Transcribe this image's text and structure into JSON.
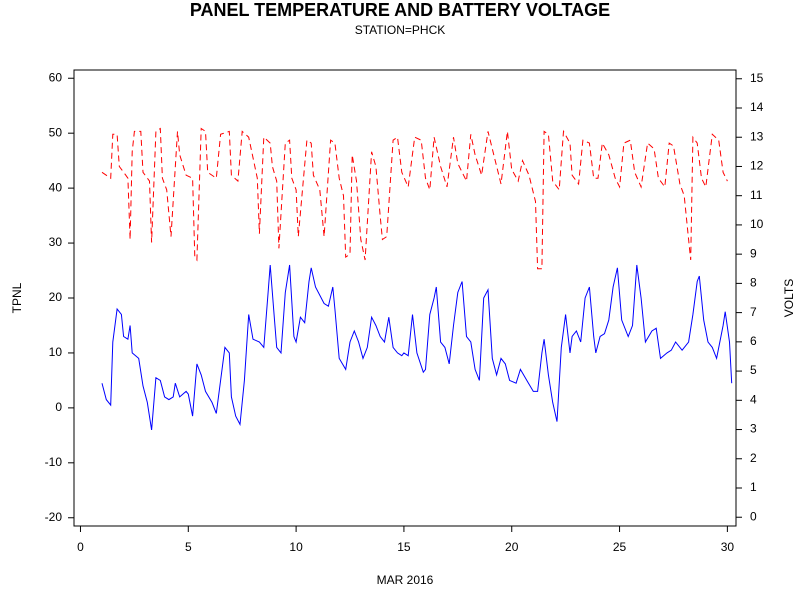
{
  "chart_data": {
    "type": "line",
    "title": "PANEL TEMPERATURE AND BATTERY VOLTAGE",
    "subtitle": "STATION=PHCK",
    "xlabel": "MAR 2016",
    "ylabel": "TPNL",
    "y2label": "VOLTS",
    "xlim": [
      -0.3,
      30.4
    ],
    "xticks": [
      0,
      5,
      10,
      15,
      20,
      25,
      30
    ],
    "ylim": [
      -21.5,
      61.5
    ],
    "yticks": [
      -20,
      -10,
      0,
      10,
      20,
      30,
      40,
      50,
      60
    ],
    "y2lim": [
      -0.3,
      15.3
    ],
    "y2ticks": [
      0,
      1,
      2,
      3,
      4,
      5,
      6,
      7,
      8,
      9,
      10,
      11,
      12,
      13,
      14,
      15
    ],
    "series": [
      {
        "color": "#0000ff",
        "style": "solid",
        "x": [
          1.0,
          1.2,
          1.4,
          1.5,
          1.7,
          1.9,
          2.0,
          2.2,
          2.3,
          2.4,
          2.7,
          2.9,
          3.1,
          3.3,
          3.5,
          3.7,
          3.9,
          4.1,
          4.3,
          4.4,
          4.6,
          4.9,
          5.0,
          5.2,
          5.4,
          5.6,
          5.8,
          6.1,
          6.3,
          6.5,
          6.7,
          6.9,
          7.0,
          7.2,
          7.4,
          7.6,
          7.8,
          8.0,
          8.3,
          8.5,
          8.7,
          8.8,
          9.0,
          9.1,
          9.3,
          9.5,
          9.7,
          9.9,
          10.0,
          10.2,
          10.4,
          10.6,
          10.7,
          10.9,
          11.3,
          11.5,
          11.7,
          11.8,
          12.0,
          12.3,
          12.5,
          12.7,
          12.9,
          13.1,
          13.3,
          13.5,
          13.7,
          13.9,
          14.1,
          14.3,
          14.5,
          14.7,
          14.9,
          15.0,
          15.2,
          15.4,
          15.6,
          15.9,
          16.0,
          16.2,
          16.4,
          16.5,
          16.7,
          16.9,
          17.1,
          17.3,
          17.5,
          17.7,
          17.9,
          18.1,
          18.3,
          18.5,
          18.7,
          18.9,
          19.1,
          19.3,
          19.5,
          19.7,
          19.9,
          20.2,
          20.4,
          20.7,
          21.0,
          21.2,
          21.4,
          21.5,
          21.7,
          21.9,
          22.1,
          22.3,
          22.5,
          22.7,
          22.8,
          23.0,
          23.2,
          23.4,
          23.6,
          23.8,
          23.9,
          24.1,
          24.3,
          24.5,
          24.7,
          24.9,
          25.1,
          25.4,
          25.6,
          25.8,
          26.0,
          26.2,
          26.5,
          26.7,
          26.9,
          27.2,
          27.4,
          27.6,
          27.9,
          28.2,
          28.4,
          28.6,
          28.7,
          28.9,
          29.1,
          29.3,
          29.5,
          29.8,
          29.9,
          30.1,
          30.2
        ],
        "values": [
          4.5,
          1.5,
          0.5,
          12,
          18,
          17,
          13,
          12.5,
          15,
          10,
          9,
          4,
          1,
          -4,
          5.5,
          5,
          2,
          1.5,
          2,
          4.5,
          2,
          3,
          2.5,
          -1.5,
          8,
          6,
          3,
          1,
          -1,
          5,
          11,
          10,
          2,
          -1.5,
          -3,
          5,
          17,
          12.5,
          12,
          11,
          21,
          26,
          16,
          11,
          10,
          21,
          26,
          13,
          12,
          16.5,
          15.5,
          23,
          25.5,
          22,
          19,
          18.5,
          22,
          18,
          9,
          7,
          12,
          14,
          12,
          9,
          11,
          16.5,
          15,
          13,
          12,
          16.5,
          11,
          10,
          9.5,
          10,
          9.5,
          17,
          10,
          6.5,
          7,
          17,
          20,
          22,
          12,
          11,
          8,
          15,
          21,
          23,
          13,
          12,
          7,
          5,
          20,
          21.5,
          9,
          6,
          9,
          8,
          5,
          4.5,
          7,
          5,
          3,
          3,
          10,
          12.5,
          6,
          1,
          -2.5,
          11,
          17,
          10,
          13,
          14,
          12,
          20,
          22,
          13,
          10,
          13,
          13.5,
          16,
          22,
          25.5,
          16,
          13,
          15,
          26,
          20,
          12,
          14,
          14.5,
          9,
          10,
          10.5,
          12,
          10.5,
          12,
          17,
          23,
          24,
          16,
          12,
          11,
          9,
          15,
          17.5,
          12,
          4.5
        ]
      },
      {
        "color": "#ff0000",
        "style": "dashed",
        "axis": "y2",
        "x": [
          1.0,
          1.4,
          1.5,
          1.7,
          1.8,
          2.1,
          2.2,
          2.3,
          2.4,
          2.5,
          2.8,
          2.9,
          3.2,
          3.3,
          3.5,
          3.7,
          3.8,
          4.0,
          4.2,
          4.5,
          4.6,
          4.9,
          5.2,
          5.3,
          5.4,
          5.6,
          5.8,
          5.9,
          6.3,
          6.5,
          6.9,
          7.0,
          7.3,
          7.5,
          7.8,
          8.2,
          8.3,
          8.5,
          8.8,
          8.9,
          9.1,
          9.2,
          9.5,
          9.7,
          9.8,
          10.0,
          10.1,
          10.5,
          10.7,
          10.8,
          11.1,
          11.3,
          11.6,
          11.8,
          12.0,
          12.2,
          12.3,
          12.5,
          12.6,
          12.8,
          13.0,
          13.2,
          13.5,
          13.7,
          13.9,
          14.0,
          14.2,
          14.5,
          14.7,
          14.9,
          15.2,
          15.5,
          15.8,
          16.0,
          16.2,
          16.4,
          16.7,
          17.0,
          17.3,
          17.5,
          17.9,
          18.1,
          18.3,
          18.6,
          18.9,
          19.2,
          19.5,
          19.8,
          20.0,
          20.3,
          20.5,
          20.8,
          21.1,
          21.2,
          21.4,
          21.5,
          21.7,
          21.9,
          22.2,
          22.4,
          22.7,
          22.8,
          23.1,
          23.3,
          23.6,
          23.8,
          24.0,
          24.2,
          24.5,
          24.8,
          25.0,
          25.2,
          25.5,
          25.7,
          26.0,
          26.3,
          26.6,
          26.8,
          27.1,
          27.3,
          27.5,
          27.8,
          28.0,
          28.2,
          28.3,
          28.4,
          28.6,
          28.8,
          29.0,
          29.3,
          29.6,
          29.8,
          30.0
        ],
        "values": [
          11.8,
          11.6,
          13.1,
          13.1,
          12.0,
          11.7,
          11.6,
          9.5,
          12.5,
          13.2,
          13.2,
          11.8,
          11.5,
          9.4,
          13.2,
          13.3,
          11.6,
          11.2,
          9.6,
          13.2,
          12.4,
          11.7,
          11.6,
          8.9,
          8.8,
          13.3,
          13.2,
          11.8,
          11.6,
          13.1,
          13.2,
          11.7,
          11.5,
          13.2,
          13.0,
          11.6,
          9.7,
          13.0,
          12.8,
          12.0,
          11.5,
          9.2,
          12.8,
          12.9,
          11.6,
          11.2,
          9.6,
          12.9,
          12.8,
          11.7,
          11.2,
          9.6,
          12.9,
          12.8,
          11.6,
          11.0,
          8.9,
          9.0,
          12.4,
          11.5,
          9.5,
          8.8,
          12.5,
          12.0,
          10.3,
          9.5,
          9.6,
          12.9,
          13.0,
          11.8,
          11.3,
          13.0,
          12.9,
          11.6,
          11.2,
          13.0,
          12.0,
          11.3,
          13.0,
          12.1,
          11.5,
          13.1,
          12.4,
          11.7,
          13.2,
          12.3,
          11.4,
          13.2,
          11.9,
          11.5,
          12.2,
          11.7,
          10.8,
          8.5,
          8.5,
          13.2,
          13.1,
          11.5,
          11.2,
          13.2,
          12.8,
          11.7,
          11.4,
          12.9,
          12.8,
          11.6,
          11.6,
          12.8,
          12.4,
          11.6,
          11.3,
          12.8,
          12.9,
          11.8,
          11.3,
          12.8,
          12.6,
          11.6,
          11.3,
          12.8,
          12.7,
          11.4,
          11.0,
          9.5,
          8.8,
          13.0,
          12.8,
          11.6,
          11.3,
          13.1,
          12.9,
          11.8,
          11.5
        ]
      }
    ]
  }
}
